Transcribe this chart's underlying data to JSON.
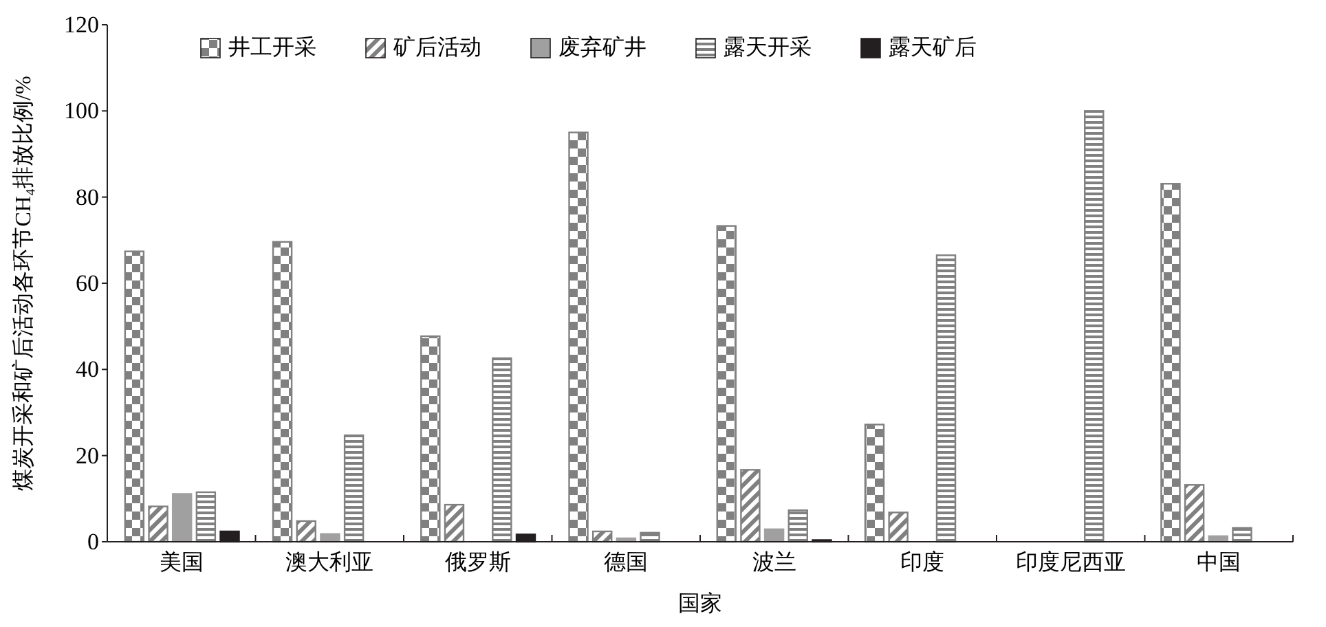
{
  "chart_data": {
    "type": "bar",
    "xlabel": "国家",
    "ylabel": "煤炭开采和矿后活动各环节CH₄排放比例/%",
    "categories": [
      "美国",
      "澳大利亚",
      "俄罗斯",
      "德国",
      "波兰",
      "印度",
      "印度尼西亚",
      "中国"
    ],
    "series": [
      {
        "name": "井工开采",
        "color": "#808080",
        "values": [
          67.4,
          69.6,
          47.7,
          95,
          73.3,
          27.2,
          null,
          83.1
        ]
      },
      {
        "name": "矿后活动",
        "color": "#808080",
        "values": [
          8.2,
          4.8,
          8.6,
          2.4,
          16.7,
          6.8,
          null,
          13.2
        ]
      },
      {
        "name": "废弃矿井",
        "color": "#a0a0a0",
        "values": [
          11.1,
          1.8,
          null,
          0.8,
          2.9,
          null,
          null,
          1.3
        ]
      },
      {
        "name": "露天开采",
        "color": "#808080",
        "values": [
          11.5,
          24.7,
          42.6,
          2.1,
          7.3,
          66.5,
          100,
          3.2
        ]
      },
      {
        "name": "露天矿后",
        "color": "#231f20",
        "values": [
          2.4,
          null,
          1.7,
          null,
          0.4,
          null,
          null,
          null
        ]
      }
    ],
    "ylim": [
      0,
      120
    ],
    "yticks": [
      0,
      20,
      40,
      60,
      80,
      100,
      120
    ],
    "legend": "top",
    "grid": false
  }
}
